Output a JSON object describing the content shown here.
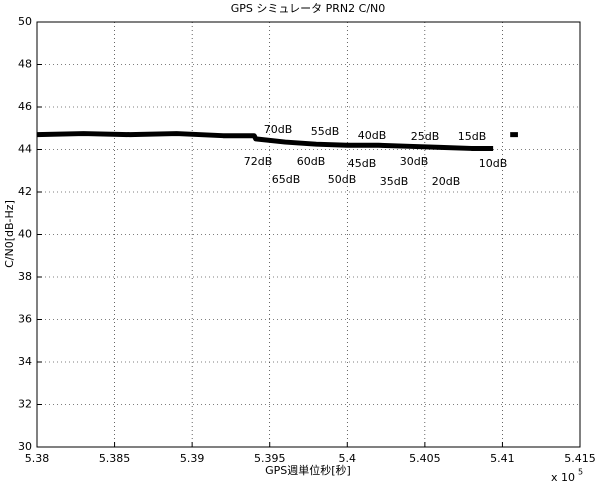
{
  "chart_data": {
    "type": "line",
    "title": "GPS シミュレータ PRN2 C/N0",
    "x_label": "GPS週単位秒[秒]",
    "y_label": "C/N0[dB-Hz]",
    "x_multiplier": "x 10",
    "x_exponent": 5,
    "xlim": [
      5.38,
      5.415
    ],
    "xticks": [
      5.38,
      5.385,
      5.39,
      5.395,
      5.4,
      5.405,
      5.41,
      5.415
    ],
    "ylim": [
      30,
      50
    ],
    "yticks": [
      30,
      32,
      34,
      36,
      38,
      40,
      42,
      44,
      46,
      48,
      50
    ],
    "grid": true,
    "x": [
      5.38,
      5.383,
      5.386,
      5.389,
      5.392,
      5.394,
      5.3941,
      5.396,
      5.398,
      5.4,
      5.402,
      5.404,
      5.406,
      5.408,
      5.4094,
      5.41,
      5.4105,
      5.411
    ],
    "series": [
      {
        "color": "#000000",
        "values": [
          44.7,
          44.75,
          44.7,
          44.75,
          44.65,
          44.65,
          44.5,
          44.35,
          44.25,
          44.2,
          44.2,
          44.15,
          44.1,
          44.05,
          44.05,
          null,
          44.7,
          44.7
        ]
      }
    ],
    "annotations": [
      "70dB",
      "55dB",
      "40dB",
      "25dB",
      "15dB",
      "72dB",
      "60dB",
      "45dB",
      "30dB",
      "10dB",
      "65dB",
      "50dB",
      "35dB",
      "20dB"
    ]
  }
}
